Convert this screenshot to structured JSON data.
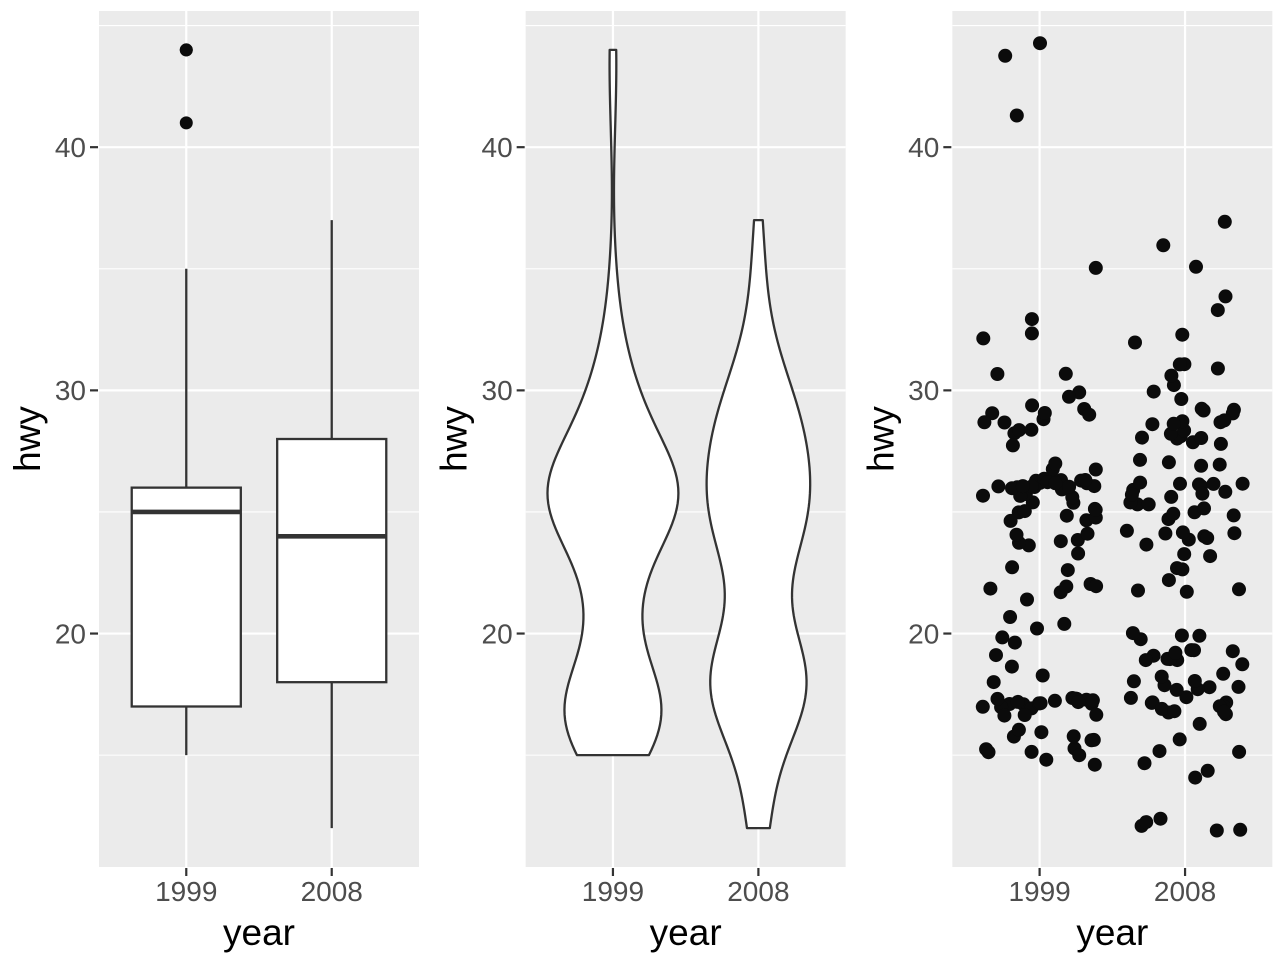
{
  "theme": {
    "background": "#FFFFFF",
    "panel_background": "#EBEBEB",
    "gridline_color": "#FFFFFF",
    "axis_text_color": "#4D4D4D",
    "axis_title_color": "#000000",
    "geom_outline_color": "#333333",
    "point_color": "#0B0B0B",
    "tick_mark_color": "#333333"
  },
  "axes": {
    "xlabel": "year",
    "ylabel": "hwy",
    "x_categories": [
      "1999",
      "2008"
    ],
    "y_major_ticks": [
      20,
      30,
      40
    ],
    "y_minor_ticks": [
      15,
      25,
      35,
      45
    ],
    "y_domain": [
      10.4,
      45.6
    ]
  },
  "chart_data": [
    {
      "type": "boxplot",
      "title": "",
      "xlabel": "year",
      "ylabel": "hwy",
      "categories": [
        "1999",
        "2008"
      ],
      "ylim": [
        10.4,
        45.6
      ],
      "box_width_units": 0.75,
      "boxes": [
        {
          "category": "1999",
          "whisker_low": 15,
          "q1": 17,
          "median": 25,
          "q3": 26,
          "whisker_high": 35,
          "outliers": [
            41,
            44,
            44
          ]
        },
        {
          "category": "2008",
          "whisker_low": 12,
          "q1": 18,
          "median": 24,
          "q3": 28,
          "whisker_high": 37,
          "outliers": []
        }
      ]
    },
    {
      "type": "violin",
      "title": "",
      "xlabel": "year",
      "ylabel": "hwy",
      "categories": [
        "1999",
        "2008"
      ],
      "ylim": [
        10.4,
        45.6
      ],
      "trim": true,
      "scale": "area",
      "bandwidth": 2,
      "max_width_units": 0.9,
      "series": [
        {
          "name": "1999",
          "min": 15,
          "max": 44,
          "value_counts": {
            "15": 7,
            "16": 6,
            "17": 20,
            "18": 2,
            "19": 2,
            "20": 4,
            "21": 2,
            "22": 5,
            "23": 3,
            "24": 6,
            "25": 10,
            "26": 24,
            "27": 3,
            "28": 4,
            "29": 8,
            "30": 2,
            "31": 2,
            "32": 2,
            "33": 1,
            "35": 1,
            "41": 1,
            "44": 2
          }
        },
        {
          "name": "2008",
          "min": 12,
          "max": 37,
          "value_counts": {
            "12": 5,
            "14": 2,
            "15": 3,
            "16": 2,
            "17": 12,
            "18": 9,
            "19": 10,
            "20": 4,
            "22": 4,
            "23": 4,
            "24": 8,
            "25": 8,
            "26": 11,
            "27": 4,
            "28": 8,
            "29": 9,
            "30": 3,
            "31": 4,
            "32": 2,
            "33": 1,
            "34": 1,
            "35": 1,
            "36": 1,
            "37": 1
          }
        }
      ]
    },
    {
      "type": "scatter",
      "variant": "jitter",
      "title": "",
      "xlabel": "year",
      "ylabel": "hwy",
      "categories": [
        "1999",
        "2008"
      ],
      "ylim": [
        10.4,
        45.6
      ],
      "jitter_width_units": 0.4,
      "jitter_height_units": 0.4,
      "point_radius_px": 7,
      "series": [
        {
          "name": "1999",
          "value_counts": {
            "15": 7,
            "16": 6,
            "17": 20,
            "18": 2,
            "19": 2,
            "20": 4,
            "21": 2,
            "22": 5,
            "23": 3,
            "24": 6,
            "25": 10,
            "26": 24,
            "27": 3,
            "28": 4,
            "29": 8,
            "30": 2,
            "31": 2,
            "32": 2,
            "33": 1,
            "35": 1,
            "41": 1,
            "44": 2
          }
        },
        {
          "name": "2008",
          "value_counts": {
            "12": 5,
            "14": 2,
            "15": 3,
            "16": 2,
            "17": 12,
            "18": 9,
            "19": 10,
            "20": 4,
            "22": 4,
            "23": 4,
            "24": 8,
            "25": 8,
            "26": 11,
            "27": 4,
            "28": 8,
            "29": 9,
            "30": 3,
            "31": 4,
            "32": 2,
            "33": 1,
            "34": 1,
            "35": 1,
            "36": 1,
            "37": 1
          }
        }
      ]
    }
  ]
}
